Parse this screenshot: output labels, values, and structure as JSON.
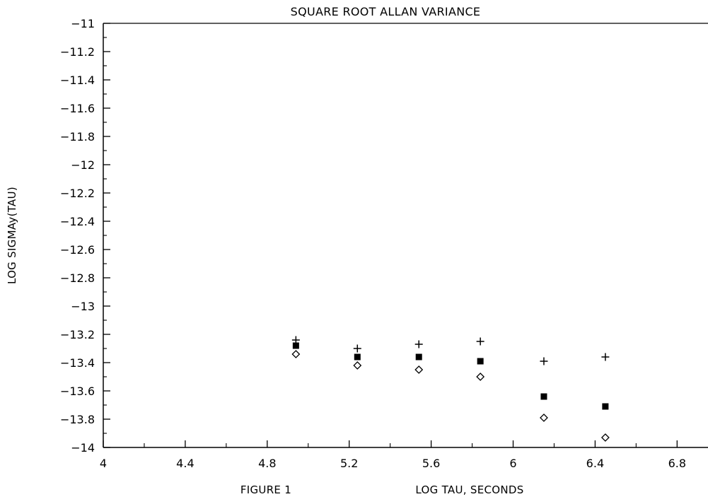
{
  "chart_data": {
    "type": "scatter",
    "title": "SQUARE ROOT ALLAN VARIANCE",
    "xlabel": "LOG TAU, SECONDS",
    "ylabel": "LOG SIGMAy(TAU)",
    "figure_label": "FIGURE 1",
    "xlim": [
      4,
      7
    ],
    "ylim": [
      -14,
      -11
    ],
    "x_ticks": [
      4,
      4.4,
      4.8,
      5.2,
      5.6,
      6,
      6.4,
      6.8
    ],
    "x_tick_labels": [
      "4",
      "4.4",
      "4.8",
      "5.2",
      "5.6",
      "6",
      "6.4",
      "6.8"
    ],
    "y_ticks": [
      -11,
      -11.2,
      -11.4,
      -11.6,
      -11.8,
      -12,
      -12.2,
      -12.4,
      -12.6,
      -12.8,
      -13,
      -13.2,
      -13.4,
      -13.6,
      -13.8,
      -14
    ],
    "y_tick_labels": [
      "−11",
      "−11.2",
      "−11.4",
      "−11.6",
      "−11.8",
      "−12",
      "−12.2",
      "−12.4",
      "−12.6",
      "−12.8",
      "−13",
      "−13.2",
      "−13.4",
      "−13.6",
      "−13.8",
      "−14"
    ],
    "grid": false,
    "x": [
      4.94,
      5.24,
      5.54,
      5.84,
      6.15,
      6.45
    ],
    "series": [
      {
        "marker": "plus",
        "color": "#000000",
        "values": [
          -13.24,
          -13.3,
          -13.27,
          -13.25,
          -13.39,
          -13.36
        ]
      },
      {
        "marker": "filled-square",
        "color": "#000000",
        "values": [
          -13.28,
          -13.36,
          -13.36,
          -13.39,
          -13.64,
          -13.71
        ]
      },
      {
        "marker": "open-diamond",
        "color": "#000000",
        "values": [
          -13.34,
          -13.42,
          -13.45,
          -13.5,
          -13.79,
          -13.93
        ]
      }
    ]
  }
}
